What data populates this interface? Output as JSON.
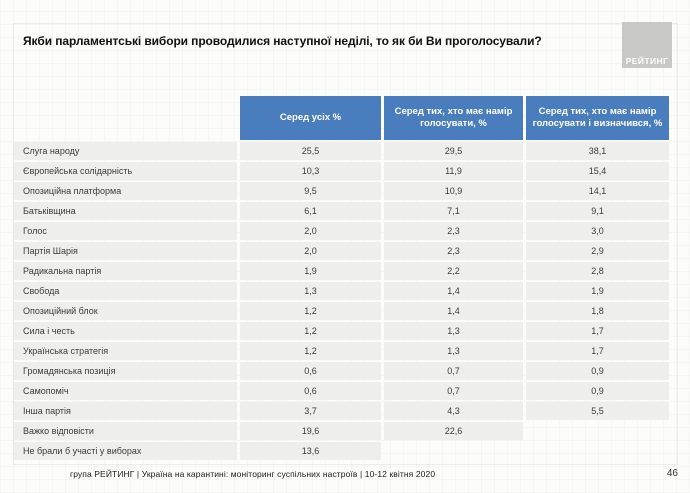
{
  "slide": {
    "title": "Якби парламентські вибори проводилися наступної неділі, то як би Ви проголосували?",
    "logo": "РЕЙТИНГ",
    "footer": "група РЕЙТИНГ | Україна на карантині: моніторинг суспільних настроїв | 10-12 квітня 2020",
    "page_number": "46"
  },
  "colors": {
    "header_blue": "#4a7dbd",
    "row_gray": "#eeeeec",
    "logo_gray": "#c8c8c6"
  },
  "chart_data": {
    "type": "table",
    "title": "Якби парламентські вибори проводилися наступної неділі, то як би Ви проголосували?",
    "headers": [
      "Серед усіх %",
      "Серед тих, хто має намір голосувати, %",
      "Серед тих, хто має намір голосувати і визначився, %"
    ],
    "rows": [
      {
        "party": "Слуга народу",
        "values": [
          "25,5",
          "29,5",
          "38,1"
        ]
      },
      {
        "party": "Європейська солідарність",
        "values": [
          "10,3",
          "11,9",
          "15,4"
        ]
      },
      {
        "party": "Опозиційна платформа",
        "values": [
          "9,5",
          "10,9",
          "14,1"
        ]
      },
      {
        "party": "Батьківщина",
        "values": [
          "6,1",
          "7,1",
          "9,1"
        ]
      },
      {
        "party": "Голос",
        "values": [
          "2,0",
          "2,3",
          "3,0"
        ]
      },
      {
        "party": "Партія Шарія",
        "values": [
          "2,0",
          "2,3",
          "2,9"
        ]
      },
      {
        "party": "Радикальна партія",
        "values": [
          "1,9",
          "2,2",
          "2,8"
        ]
      },
      {
        "party": "Свобода",
        "values": [
          "1,3",
          "1,4",
          "1,9"
        ]
      },
      {
        "party": "Опозиційний блок",
        "values": [
          "1,2",
          "1,4",
          "1,8"
        ]
      },
      {
        "party": "Сила і честь",
        "values": [
          "1,2",
          "1,3",
          "1,7"
        ]
      },
      {
        "party": "Українська стратегія",
        "values": [
          "1,2",
          "1,3",
          "1,7"
        ]
      },
      {
        "party": "Громадянська позиція",
        "values": [
          "0,6",
          "0,7",
          "0,9"
        ]
      },
      {
        "party": "Самопоміч",
        "values": [
          "0,6",
          "0,7",
          "0,9"
        ]
      },
      {
        "party": "Інша партія",
        "values": [
          "3,7",
          "4,3",
          "5,5"
        ]
      },
      {
        "party": "Важко відповісти",
        "values": [
          "19,6",
          "22,6",
          null
        ]
      },
      {
        "party": "Не брали б участі у виборах",
        "values": [
          "13,6",
          null,
          null
        ]
      }
    ]
  }
}
